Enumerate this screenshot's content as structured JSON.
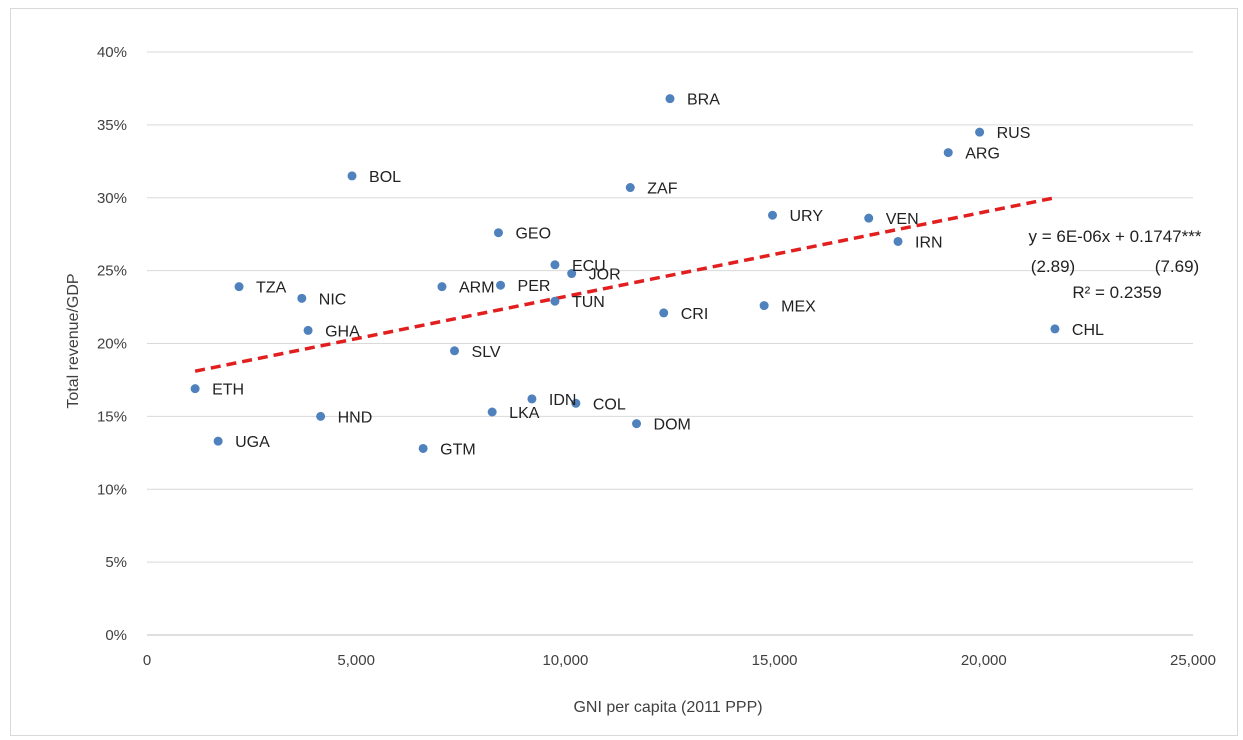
{
  "chart_data": {
    "type": "scatter",
    "title": "",
    "xlabel": "GNI per capita (2011 PPP)",
    "ylabel": "Total revenue/GDP",
    "xlim": [
      0,
      25000
    ],
    "ylim": [
      0,
      0.4
    ],
    "x_ticks": [
      "0",
      "5,000",
      "10,000",
      "15,000",
      "20,000",
      "25,000"
    ],
    "y_ticks": [
      "0%",
      "5%",
      "10%",
      "15%",
      "20%",
      "25%",
      "30%",
      "35%",
      "40%"
    ],
    "grid": "horizontal",
    "marker_color": "#4f81bd",
    "trendline_color": "#e21f1f",
    "points": [
      {
        "label": "BRA",
        "x": 12500,
        "y": 0.368
      },
      {
        "label": "RUS",
        "x": 19900,
        "y": 0.345
      },
      {
        "label": "ARG",
        "x": 19150,
        "y": 0.331
      },
      {
        "label": "BOL",
        "x": 4900,
        "y": 0.315
      },
      {
        "label": "ZAF",
        "x": 11550,
        "y": 0.307
      },
      {
        "label": "URY",
        "x": 14950,
        "y": 0.288
      },
      {
        "label": "VEN",
        "x": 17250,
        "y": 0.286
      },
      {
        "label": "GEO",
        "x": 8400,
        "y": 0.276
      },
      {
        "label": "IRN",
        "x": 17950,
        "y": 0.27
      },
      {
        "label": "ECU",
        "x": 9750,
        "y": 0.254
      },
      {
        "label": "JOR",
        "x": 10150,
        "y": 0.248
      },
      {
        "label": "TZA",
        "x": 2200,
        "y": 0.239
      },
      {
        "label": "ARM",
        "x": 7050,
        "y": 0.239
      },
      {
        "label": "PER",
        "x": 8450,
        "y": 0.24
      },
      {
        "label": "NIC",
        "x": 3700,
        "y": 0.231
      },
      {
        "label": "TUN",
        "x": 9750,
        "y": 0.229
      },
      {
        "label": "MEX",
        "x": 14750,
        "y": 0.226
      },
      {
        "label": "CRI",
        "x": 12350,
        "y": 0.221
      },
      {
        "label": "GHA",
        "x": 3850,
        "y": 0.209
      },
      {
        "label": "CHL",
        "x": 21700,
        "y": 0.21
      },
      {
        "label": "SLV",
        "x": 7350,
        "y": 0.195
      },
      {
        "label": "ETH",
        "x": 1150,
        "y": 0.169
      },
      {
        "label": "IDN",
        "x": 9200,
        "y": 0.162
      },
      {
        "label": "COL",
        "x": 10250,
        "y": 0.159
      },
      {
        "label": "LKA",
        "x": 8250,
        "y": 0.153
      },
      {
        "label": "HND",
        "x": 4150,
        "y": 0.15
      },
      {
        "label": "DOM",
        "x": 11700,
        "y": 0.145
      },
      {
        "label": "UGA",
        "x": 1700,
        "y": 0.133
      },
      {
        "label": "GTM",
        "x": 6600,
        "y": 0.128
      }
    ],
    "trendline": {
      "x": [
        1150,
        21700
      ],
      "y": [
        0.181,
        0.3
      ]
    },
    "annotation": [
      "y = 6E-06x + 0.1747***",
      "(2.89)",
      "(7.69)",
      "R² = 0.2359"
    ]
  }
}
